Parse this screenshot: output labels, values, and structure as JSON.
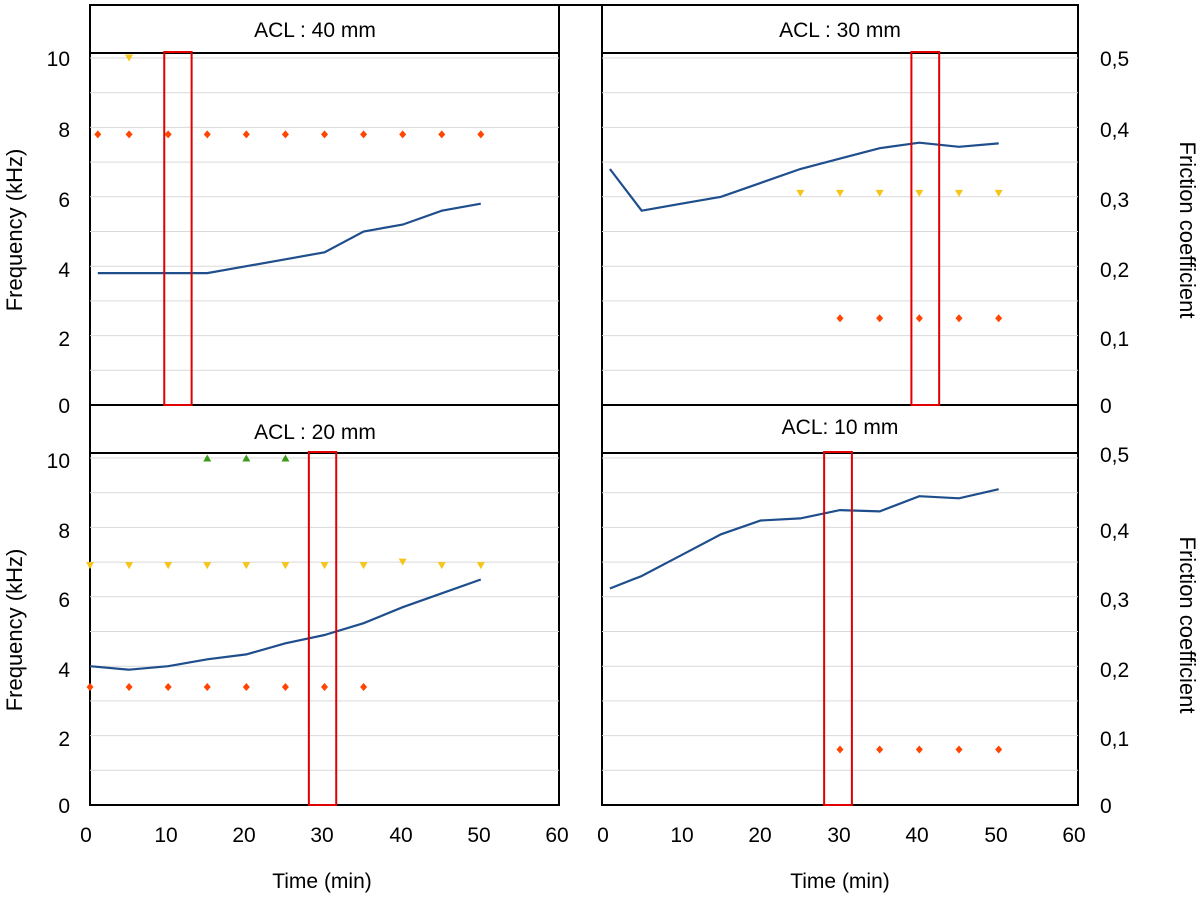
{
  "chart_data": {
    "type": "line",
    "layout": "2x2 panels",
    "x_axis": {
      "label": "Time (min)",
      "range": [
        0,
        60
      ],
      "ticks": [
        "0",
        "10",
        "20",
        "30",
        "40",
        "50",
        "60"
      ]
    },
    "y_axis_left": {
      "label": "Frequency (kHz)",
      "range": [
        0,
        10
      ],
      "ticks": [
        "0",
        "2",
        "4",
        "6",
        "8",
        "10"
      ]
    },
    "y_axis_right": {
      "label": "Friction coefficient",
      "range": [
        0,
        0.5
      ],
      "ticks": [
        "0",
        "0,1",
        "0,2",
        "0,3",
        "0,4",
        "0,5"
      ]
    },
    "colors": {
      "friction": "#1f4e8c",
      "marker_orange": "#ff4500",
      "marker_yellow": "#f5c518",
      "marker_green": "#3c9a1a",
      "highlight": "#e00000",
      "frame": "#000000",
      "grid": "#d9d9d9"
    },
    "panels": [
      {
        "title": "ACL : 40 mm",
        "friction": {
          "x": [
            1,
            5,
            10,
            15,
            20,
            25,
            30,
            35,
            40,
            45,
            50
          ],
          "y": [
            0.19,
            0.19,
            0.19,
            0.19,
            0.2,
            0.21,
            0.22,
            0.25,
            0.26,
            0.28,
            0.29
          ]
        },
        "markers": [
          {
            "shape": "diamond",
            "color": "orange",
            "x": [
              1,
              5,
              10,
              15,
              20,
              25,
              30,
              35,
              40,
              45,
              50
            ],
            "y": [
              7.8,
              7.8,
              7.8,
              7.8,
              7.8,
              7.8,
              7.8,
              7.8,
              7.8,
              7.8,
              7.8
            ]
          },
          {
            "shape": "triangle-down",
            "color": "yellow",
            "x": [
              5
            ],
            "y": [
              10
            ]
          }
        ],
        "highlight": {
          "x0": 9.5,
          "x1": 13
        }
      },
      {
        "title": "ACL : 30 mm",
        "friction": {
          "x": [
            1,
            5,
            10,
            15,
            20,
            25,
            30,
            35,
            40,
            45,
            50
          ],
          "y": [
            0.34,
            0.28,
            0.29,
            0.3,
            0.32,
            0.34,
            0.355,
            0.37,
            0.378,
            0.372,
            0.377
          ]
        },
        "markers": [
          {
            "shape": "triangle-down",
            "color": "yellow",
            "x": [
              25,
              30,
              35,
              40,
              45,
              50
            ],
            "y": [
              6.1,
              6.1,
              6.1,
              6.1,
              6.1,
              6.1
            ]
          },
          {
            "shape": "diamond",
            "color": "orange",
            "x": [
              30,
              35,
              40,
              45,
              50
            ],
            "y": [
              2.5,
              2.5,
              2.5,
              2.5,
              2.5
            ]
          }
        ],
        "highlight": {
          "x0": 39,
          "x1": 42.5
        }
      },
      {
        "title": "ACL : 20 mm",
        "friction": {
          "x": [
            0,
            5,
            10,
            15,
            20,
            25,
            30,
            35,
            40,
            45,
            50
          ],
          "y": [
            0.2,
            0.195,
            0.2,
            0.21,
            0.217,
            0.233,
            0.245,
            0.262,
            0.285,
            0.305,
            0.325
          ]
        },
        "markers": [
          {
            "shape": "triangle-up",
            "color": "green",
            "x": [
              15,
              20,
              25
            ],
            "y": [
              10,
              10,
              10
            ]
          },
          {
            "shape": "triangle-down",
            "color": "yellow",
            "x": [
              0,
              5,
              10,
              15,
              20,
              25,
              30,
              35,
              40,
              45,
              50
            ],
            "y": [
              6.9,
              6.9,
              6.9,
              6.9,
              6.9,
              6.9,
              6.9,
              6.9,
              7.0,
              6.9,
              6.9
            ]
          },
          {
            "shape": "diamond",
            "color": "orange",
            "x": [
              0,
              5,
              10,
              15,
              20,
              25,
              30,
              35
            ],
            "y": [
              3.4,
              3.4,
              3.4,
              3.4,
              3.4,
              3.4,
              3.4,
              3.4
            ]
          }
        ],
        "highlight": {
          "x0": 28,
          "x1": 31.5
        }
      },
      {
        "title": "ACL: 10 mm",
        "friction": {
          "x": [
            1,
            5,
            10,
            15,
            20,
            25,
            30,
            35,
            40,
            45,
            50
          ],
          "y": [
            0.312,
            0.33,
            0.36,
            0.39,
            0.41,
            0.413,
            0.425,
            0.423,
            0.445,
            0.442,
            0.455
          ]
        },
        "markers": [
          {
            "shape": "diamond",
            "color": "orange",
            "x": [
              30,
              35,
              40,
              45,
              50
            ],
            "y": [
              1.6,
              1.6,
              1.6,
              1.6,
              1.6
            ]
          }
        ],
        "highlight": {
          "x0": 28,
          "x1": 31.5
        }
      }
    ]
  }
}
